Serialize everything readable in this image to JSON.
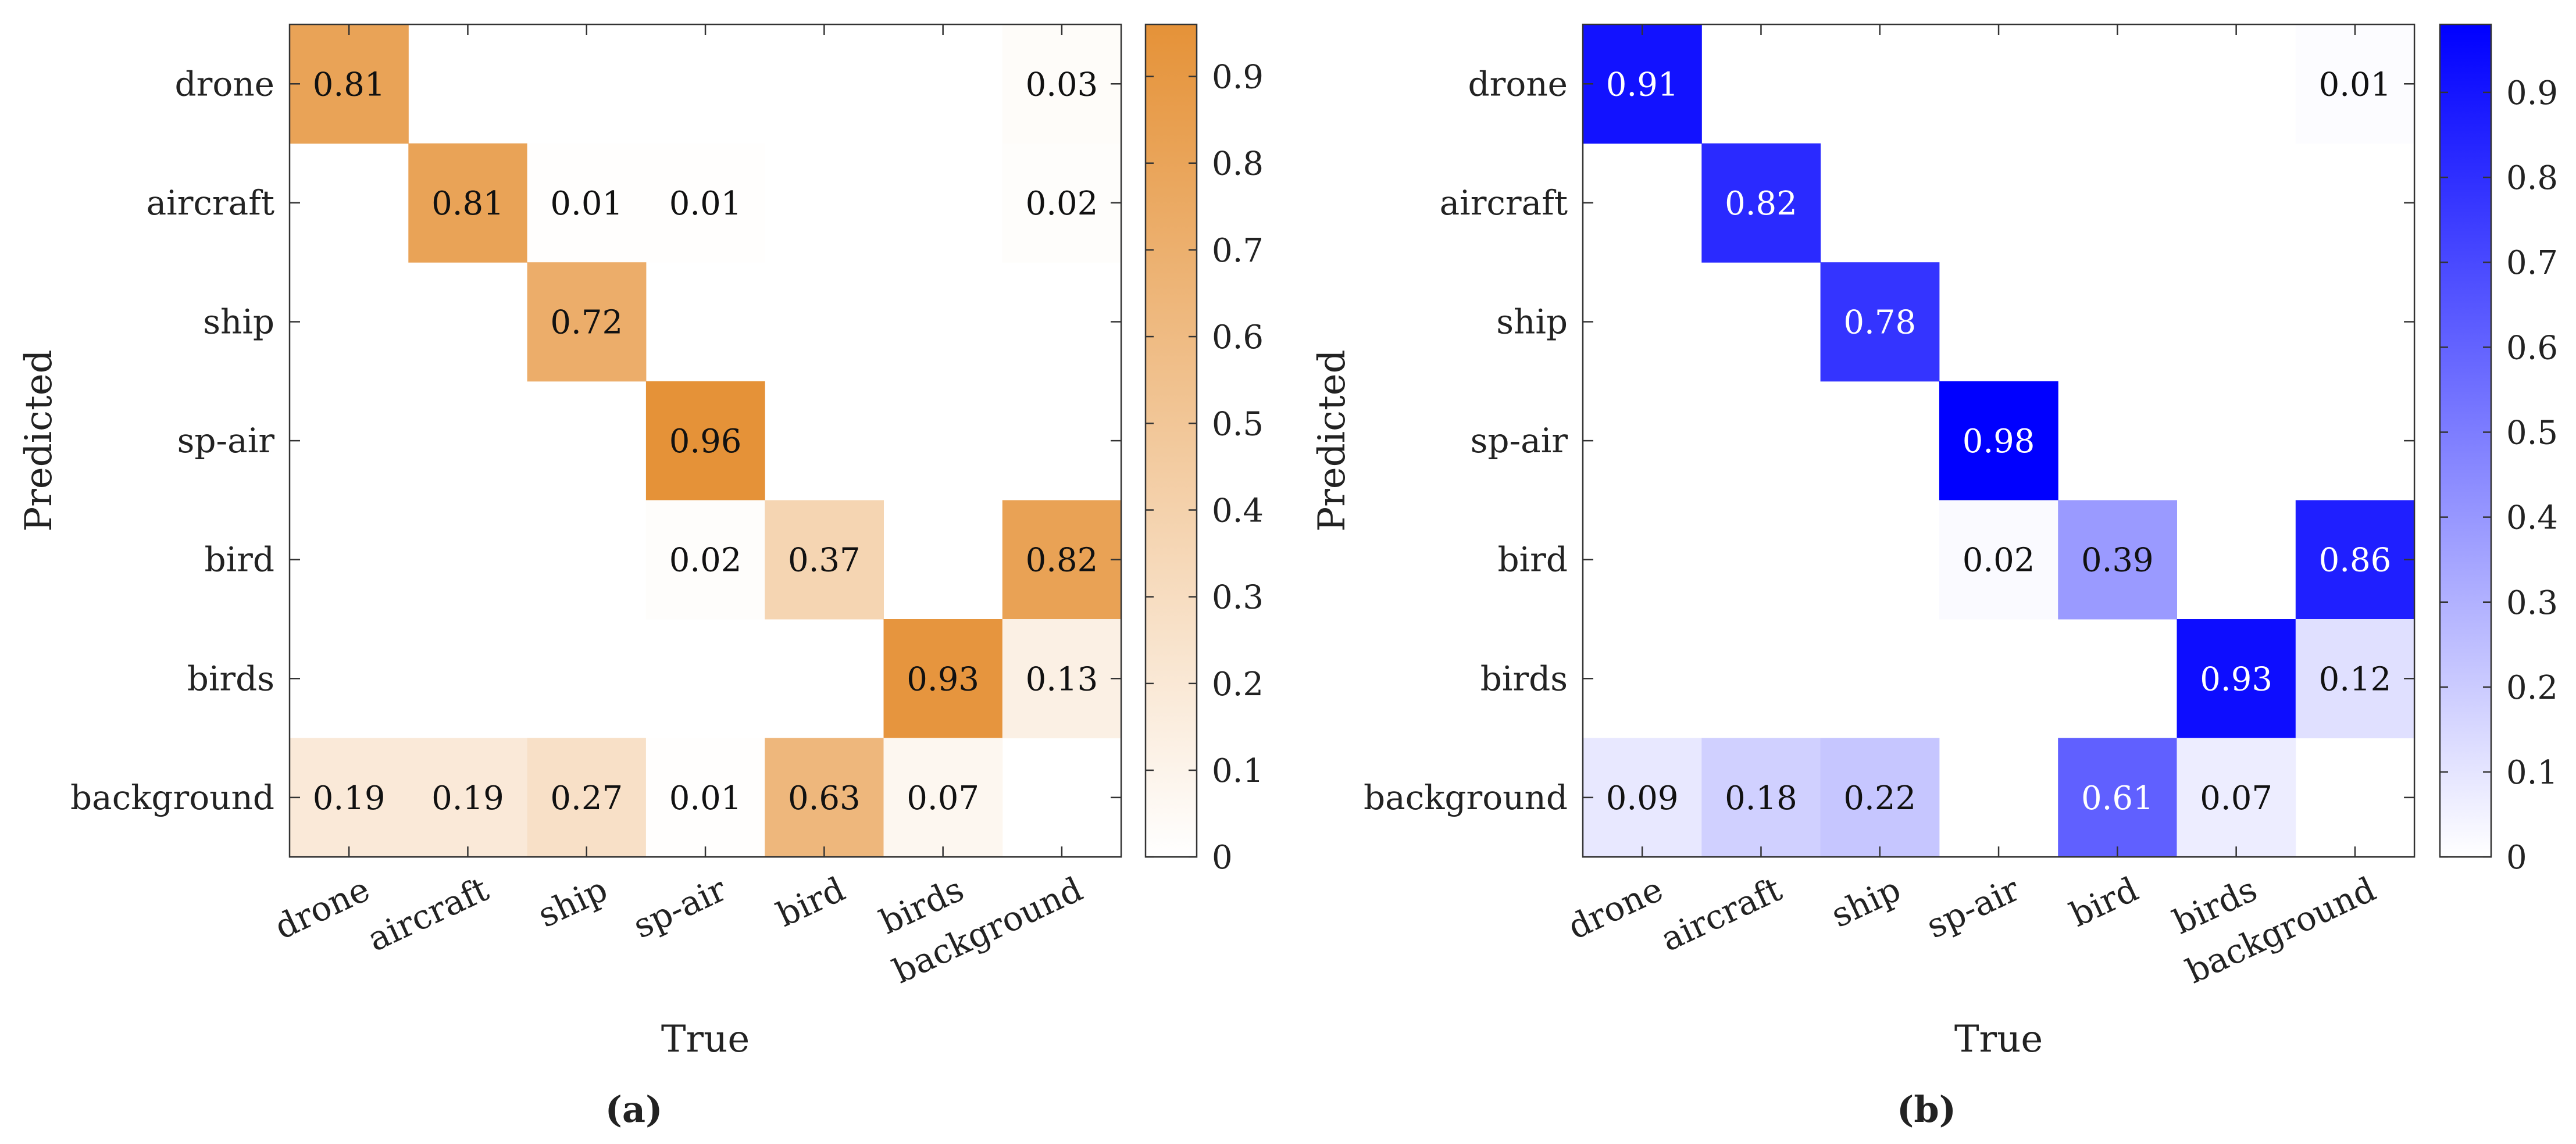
{
  "figure": {
    "panels": [
      {
        "caption": "(a)"
      },
      {
        "caption": "(b)"
      }
    ]
  },
  "chart_data": [
    {
      "type": "heatmap",
      "title": "",
      "xlabel": "True",
      "ylabel": "Predicted",
      "x_categories": [
        "drone",
        "aircraft",
        "ship",
        "sp-air",
        "bird",
        "birds",
        "background"
      ],
      "y_categories": [
        "drone",
        "aircraft",
        "ship",
        "sp-air",
        "bird",
        "birds",
        "background"
      ],
      "colormap": {
        "low": "#ffffff",
        "high": "#e59238"
      },
      "colorbar": {
        "range": [
          0,
          0.96
        ],
        "ticks": [
          "0",
          "0.1",
          "0.2",
          "0.3",
          "0.4",
          "0.5",
          "0.6",
          "0.7",
          "0.8",
          "0.9"
        ]
      },
      "cells": [
        {
          "row": "drone",
          "col": "drone",
          "value": 0.81,
          "label": "0.81"
        },
        {
          "row": "drone",
          "col": "background",
          "value": 0.03,
          "label": "0.03"
        },
        {
          "row": "aircraft",
          "col": "aircraft",
          "value": 0.81,
          "label": "0.81"
        },
        {
          "row": "aircraft",
          "col": "ship",
          "value": 0.01,
          "label": "0.01"
        },
        {
          "row": "aircraft",
          "col": "sp-air",
          "value": 0.01,
          "label": "0.01"
        },
        {
          "row": "aircraft",
          "col": "background",
          "value": 0.02,
          "label": "0.02"
        },
        {
          "row": "ship",
          "col": "ship",
          "value": 0.72,
          "label": "0.72"
        },
        {
          "row": "sp-air",
          "col": "sp-air",
          "value": 0.96,
          "label": "0.96"
        },
        {
          "row": "bird",
          "col": "sp-air",
          "value": 0.02,
          "label": "0.02"
        },
        {
          "row": "bird",
          "col": "bird",
          "value": 0.37,
          "label": "0.37"
        },
        {
          "row": "bird",
          "col": "background",
          "value": 0.82,
          "label": "0.82"
        },
        {
          "row": "birds",
          "col": "birds",
          "value": 0.93,
          "label": "0.93"
        },
        {
          "row": "birds",
          "col": "background",
          "value": 0.13,
          "label": "0.13"
        },
        {
          "row": "background",
          "col": "drone",
          "value": 0.19,
          "label": "0.19"
        },
        {
          "row": "background",
          "col": "aircraft",
          "value": 0.19,
          "label": "0.19"
        },
        {
          "row": "background",
          "col": "ship",
          "value": 0.27,
          "label": "0.27"
        },
        {
          "row": "background",
          "col": "sp-air",
          "value": 0.01,
          "label": "0.01"
        },
        {
          "row": "background",
          "col": "bird",
          "value": 0.63,
          "label": "0.63"
        },
        {
          "row": "background",
          "col": "birds",
          "value": 0.07,
          "label": "0.07"
        }
      ]
    },
    {
      "type": "heatmap",
      "title": "",
      "xlabel": "True",
      "ylabel": "Predicted",
      "x_categories": [
        "drone",
        "aircraft",
        "ship",
        "sp-air",
        "bird",
        "birds",
        "background"
      ],
      "y_categories": [
        "drone",
        "aircraft",
        "ship",
        "sp-air",
        "bird",
        "birds",
        "background"
      ],
      "colormap": {
        "low": "#ffffff",
        "high": "#0000ff"
      },
      "colorbar": {
        "range": [
          0,
          0.98
        ],
        "ticks": [
          "0",
          "0.1",
          "0.2",
          "0.3",
          "0.4",
          "0.5",
          "0.6",
          "0.7",
          "0.8",
          "0.9"
        ]
      },
      "cells": [
        {
          "row": "drone",
          "col": "drone",
          "value": 0.91,
          "label": "0.91"
        },
        {
          "row": "drone",
          "col": "background",
          "value": 0.01,
          "label": "0.01"
        },
        {
          "row": "aircraft",
          "col": "aircraft",
          "value": 0.82,
          "label": "0.82"
        },
        {
          "row": "ship",
          "col": "ship",
          "value": 0.78,
          "label": "0.78"
        },
        {
          "row": "sp-air",
          "col": "sp-air",
          "value": 0.98,
          "label": "0.98"
        },
        {
          "row": "bird",
          "col": "sp-air",
          "value": 0.02,
          "label": "0.02"
        },
        {
          "row": "bird",
          "col": "bird",
          "value": 0.39,
          "label": "0.39"
        },
        {
          "row": "bird",
          "col": "background",
          "value": 0.86,
          "label": "0.86"
        },
        {
          "row": "birds",
          "col": "birds",
          "value": 0.93,
          "label": "0.93"
        },
        {
          "row": "birds",
          "col": "background",
          "value": 0.12,
          "label": "0.12"
        },
        {
          "row": "background",
          "col": "drone",
          "value": 0.09,
          "label": "0.09"
        },
        {
          "row": "background",
          "col": "aircraft",
          "value": 0.18,
          "label": "0.18"
        },
        {
          "row": "background",
          "col": "ship",
          "value": 0.22,
          "label": "0.22"
        },
        {
          "row": "background",
          "col": "bird",
          "value": 0.61,
          "label": "0.61"
        },
        {
          "row": "background",
          "col": "birds",
          "value": 0.07,
          "label": "0.07"
        }
      ]
    }
  ]
}
